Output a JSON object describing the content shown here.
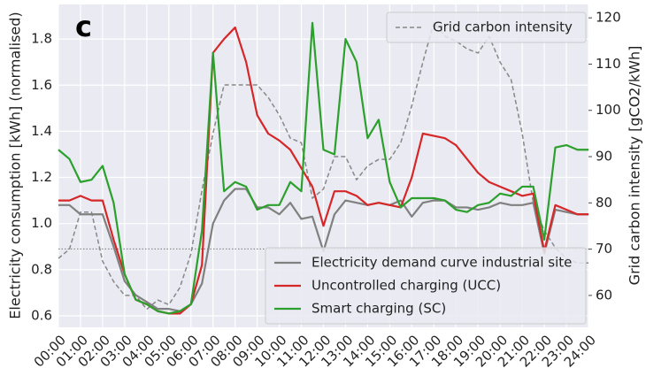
{
  "chart_data": {
    "type": "line",
    "panel_label": "c",
    "y_label": "Electricity consumption [kWh] (normalised)",
    "y2_label": "Grid carbon intensity [gCO2/kWh]",
    "x": [
      0,
      0.5,
      1,
      1.5,
      2,
      2.5,
      3,
      3.5,
      4,
      4.5,
      5,
      5.5,
      6,
      6.5,
      7,
      7.5,
      8,
      8.5,
      9,
      9.5,
      10,
      10.5,
      11,
      11.5,
      12,
      12.5,
      13,
      13.5,
      14,
      14.5,
      15,
      15.5,
      16,
      16.5,
      17,
      17.5,
      18,
      18.5,
      19,
      19.5,
      20,
      20.5,
      21,
      21.5,
      22,
      22.5,
      23,
      23.5,
      24
    ],
    "xlim": [
      0,
      24
    ],
    "xticks": [
      {
        "value": 0,
        "label": "00:00"
      },
      {
        "value": 1,
        "label": "01:00"
      },
      {
        "value": 2,
        "label": "02:00"
      },
      {
        "value": 3,
        "label": "03:00"
      },
      {
        "value": 4,
        "label": "04:00"
      },
      {
        "value": 5,
        "label": "05:00"
      },
      {
        "value": 6,
        "label": "06:00"
      },
      {
        "value": 7,
        "label": "07:00"
      },
      {
        "value": 8,
        "label": "08:00"
      },
      {
        "value": 9,
        "label": "09:00"
      },
      {
        "value": 10,
        "label": "10:00"
      },
      {
        "value": 11,
        "label": "11:00"
      },
      {
        "value": 12,
        "label": "12:00"
      },
      {
        "value": 13,
        "label": "13:00"
      },
      {
        "value": 14,
        "label": "14:00"
      },
      {
        "value": 15,
        "label": "15:00"
      },
      {
        "value": 16,
        "label": "16:00"
      },
      {
        "value": 17,
        "label": "17:00"
      },
      {
        "value": 18,
        "label": "18:00"
      },
      {
        "value": 19,
        "label": "19:00"
      },
      {
        "value": 20,
        "label": "20:00"
      },
      {
        "value": 21,
        "label": "21:00"
      },
      {
        "value": 22,
        "label": "22:00"
      },
      {
        "value": 23,
        "label": "23:00"
      },
      {
        "value": 24,
        "label": "24:00"
      }
    ],
    "ylim": [
      0.55,
      1.95
    ],
    "yticks": [
      0.6,
      0.8,
      {
        "value": 1,
        "label": "1.0"
      },
      1.2,
      1.4,
      1.6,
      1.8
    ],
    "y2lim": [
      53.1,
      122.9
    ],
    "y2ticks": [
      60,
      70,
      80,
      90,
      100,
      110,
      120
    ],
    "grid": true,
    "hline": 0.89,
    "series": [
      {
        "name": "Grid carbon intensity",
        "color": "#888888",
        "dash": true,
        "axis": "y2",
        "legend": "upper right",
        "values": [
          68,
          70,
          78,
          78,
          67.4,
          63,
          60,
          60,
          57,
          59,
          58,
          61.7,
          69,
          82.7,
          95,
          105.5,
          105.5,
          105.5,
          105.5,
          102.8,
          99,
          94,
          93,
          81,
          83,
          90,
          90,
          85,
          88,
          89.4,
          89.4,
          93,
          101,
          110.4,
          119,
          116,
          115,
          113.3,
          112.4,
          116,
          110.4,
          106.6,
          95,
          80,
          74,
          70.3,
          68,
          67,
          67
        ]
      },
      {
        "name": "Electricity demand curve industrial site",
        "color": "#808080",
        "legend": "lower right",
        "values": [
          1.08,
          1.08,
          1.04,
          1.04,
          1.04,
          0.9,
          0.75,
          0.69,
          0.66,
          0.63,
          0.63,
          0.62,
          0.65,
          0.74,
          1.0,
          1.1,
          1.15,
          1.15,
          1.07,
          1.07,
          1.04,
          1.09,
          1.02,
          1.03,
          0.88,
          1.04,
          1.1,
          1.09,
          1.08,
          1.09,
          1.08,
          1.1,
          1.03,
          1.09,
          1.1,
          1.1,
          1.07,
          1.07,
          1.06,
          1.07,
          1.09,
          1.08,
          1.08,
          1.09,
          0.87,
          1.06,
          1.05,
          1.04,
          1.04
        ]
      },
      {
        "name": "Uncontrolled charging (UCC)",
        "color": "#d62728",
        "legend": "lower right",
        "values": [
          1.1,
          1.1,
          1.12,
          1.1,
          1.1,
          0.93,
          0.78,
          0.67,
          0.65,
          0.62,
          0.61,
          0.61,
          0.65,
          0.82,
          1.74,
          1.8,
          1.85,
          1.7,
          1.47,
          1.39,
          1.36,
          1.32,
          1.24,
          1.16,
          0.99,
          1.14,
          1.14,
          1.12,
          1.08,
          1.09,
          1.08,
          1.07,
          1.2,
          1.39,
          1.38,
          1.37,
          1.34,
          1.28,
          1.22,
          1.18,
          1.16,
          1.14,
          1.12,
          1.13,
          0.88,
          1.08,
          1.06,
          1.04,
          1.04
        ]
      },
      {
        "name": "Smart charging (SC)",
        "color": "#2ca02c",
        "legend": "lower right",
        "values": [
          1.32,
          1.28,
          1.18,
          1.19,
          1.25,
          1.09,
          0.78,
          0.67,
          0.65,
          0.62,
          0.61,
          0.62,
          0.65,
          0.97,
          1.74,
          1.14,
          1.18,
          1.16,
          1.06,
          1.08,
          1.08,
          1.18,
          1.14,
          1.87,
          1.32,
          1.3,
          1.8,
          1.7,
          1.37,
          1.45,
          1.18,
          1.07,
          1.11,
          1.11,
          1.11,
          1.1,
          1.06,
          1.05,
          1.08,
          1.09,
          1.13,
          1.12,
          1.16,
          1.16,
          0.93,
          1.33,
          1.34,
          1.32,
          1.32
        ]
      }
    ]
  }
}
